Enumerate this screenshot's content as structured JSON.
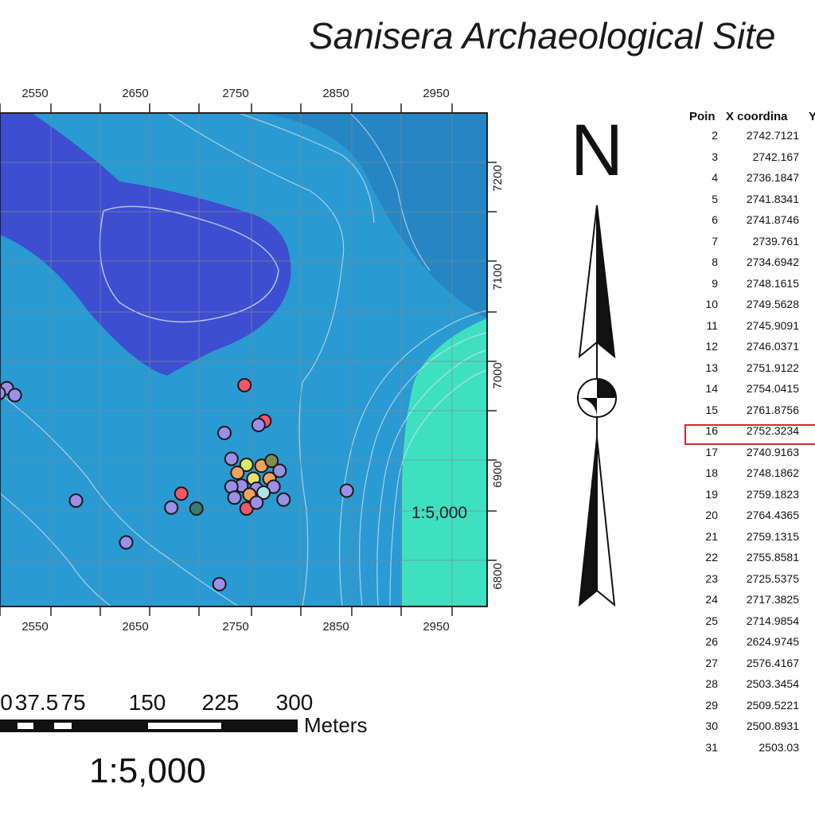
{
  "title": "Sanisera Archaeological Site",
  "map": {
    "x_ticks": [
      "2550",
      "2650",
      "2750",
      "2850",
      "2950"
    ],
    "y_ticks": [
      "7200",
      "7100",
      "7000",
      "6900",
      "6800"
    ],
    "scale_label": "1:5,000",
    "colors": {
      "low": "#3a4fcc",
      "mid": "#2a8fcb",
      "mid2": "#2ea6d6",
      "high": "#3fe0c0",
      "contour": "#cfe3f2"
    },
    "points": [
      {
        "x": 2506,
        "y": 6973,
        "color": "#9c8fe8"
      },
      {
        "x": 2498,
        "y": 6968,
        "color": "#9c8fe8"
      },
      {
        "x": 2514,
        "y": 6966,
        "color": "#9c8fe8"
      },
      {
        "x": 2743,
        "y": 6976,
        "color": "#f2566b"
      },
      {
        "x": 2763,
        "y": 6940,
        "color": "#f2566b"
      },
      {
        "x": 2757,
        "y": 6936,
        "color": "#9c8fe8"
      },
      {
        "x": 2723,
        "y": 6928,
        "color": "#9c8fe8"
      },
      {
        "x": 2730,
        "y": 6902,
        "color": "#9c8fe8"
      },
      {
        "x": 2745,
        "y": 6896,
        "color": "#d9e86a"
      },
      {
        "x": 2760,
        "y": 6895,
        "color": "#f0a35a"
      },
      {
        "x": 2770,
        "y": 6900,
        "color": "#7f8b4f"
      },
      {
        "x": 2778,
        "y": 6890,
        "color": "#9c8fe8"
      },
      {
        "x": 2736,
        "y": 6888,
        "color": "#f0a35a"
      },
      {
        "x": 2752,
        "y": 6882,
        "color": "#e8e06a"
      },
      {
        "x": 2768,
        "y": 6882,
        "color": "#f0a35a"
      },
      {
        "x": 2740,
        "y": 6875,
        "color": "#9c8fe8"
      },
      {
        "x": 2755,
        "y": 6872,
        "color": "#9c8fe8"
      },
      {
        "x": 2772,
        "y": 6874,
        "color": "#9c8fe8"
      },
      {
        "x": 2730,
        "y": 6874,
        "color": "#9c8fe8"
      },
      {
        "x": 2748,
        "y": 6866,
        "color": "#f0a35a"
      },
      {
        "x": 2762,
        "y": 6868,
        "color": "#aee3e8"
      },
      {
        "x": 2733,
        "y": 6863,
        "color": "#9c8fe8"
      },
      {
        "x": 2782,
        "y": 6861,
        "color": "#9c8fe8"
      },
      {
        "x": 2745,
        "y": 6852,
        "color": "#f2566b"
      },
      {
        "x": 2755,
        "y": 6858,
        "color": "#9c8fe8"
      },
      {
        "x": 2845,
        "y": 6870,
        "color": "#9c8fe8"
      },
      {
        "x": 2575,
        "y": 6860,
        "color": "#9c8fe8"
      },
      {
        "x": 2680,
        "y": 6867,
        "color": "#f2566b"
      },
      {
        "x": 2670,
        "y": 6853,
        "color": "#9c8fe8"
      },
      {
        "x": 2695,
        "y": 6852,
        "color": "#3c7a74"
      },
      {
        "x": 2625,
        "y": 6818,
        "color": "#9c8fe8"
      },
      {
        "x": 2718,
        "y": 6776,
        "color": "#9c8fe8"
      }
    ]
  },
  "north_arrow": {
    "label": "N"
  },
  "scale_bar": {
    "labels": [
      "0",
      "37.5",
      "75",
      "150",
      "225",
      "300"
    ],
    "units": "Meters",
    "ratio": "1:5,000"
  },
  "table": {
    "headers": [
      "Poin",
      "X coordina",
      "Y"
    ],
    "rows": [
      {
        "id": "2",
        "x": "2742.7121"
      },
      {
        "id": "3",
        "x": "2742.167"
      },
      {
        "id": "4",
        "x": "2736.1847"
      },
      {
        "id": "5",
        "x": "2741.8341"
      },
      {
        "id": "6",
        "x": "2741.8746"
      },
      {
        "id": "7",
        "x": "2739.761"
      },
      {
        "id": "8",
        "x": "2734.6942"
      },
      {
        "id": "9",
        "x": "2748.1615"
      },
      {
        "id": "10",
        "x": "2749.5628"
      },
      {
        "id": "11",
        "x": "2745.9091"
      },
      {
        "id": "12",
        "x": "2746.0371"
      },
      {
        "id": "13",
        "x": "2751.9122"
      },
      {
        "id": "14",
        "x": "2754.0415"
      },
      {
        "id": "15",
        "x": "2761.8756"
      },
      {
        "id": "16",
        "x": "2752.3234",
        "highlighted": true
      },
      {
        "id": "17",
        "x": "2740.9163"
      },
      {
        "id": "18",
        "x": "2748.1862"
      },
      {
        "id": "19",
        "x": "2759.1823"
      },
      {
        "id": "20",
        "x": "2764.4365"
      },
      {
        "id": "21",
        "x": "2759.1315"
      },
      {
        "id": "22",
        "x": "2755.8581"
      },
      {
        "id": "23",
        "x": "2725.5375"
      },
      {
        "id": "24",
        "x": "2717.3825"
      },
      {
        "id": "25",
        "x": "2714.9854"
      },
      {
        "id": "26",
        "x": "2624.9745"
      },
      {
        "id": "27",
        "x": "2576.4167"
      },
      {
        "id": "28",
        "x": "2503.3454"
      },
      {
        "id": "29",
        "x": "2509.5221"
      },
      {
        "id": "30",
        "x": "2500.8931"
      },
      {
        "id": "31",
        "x": "2503.03"
      }
    ]
  }
}
